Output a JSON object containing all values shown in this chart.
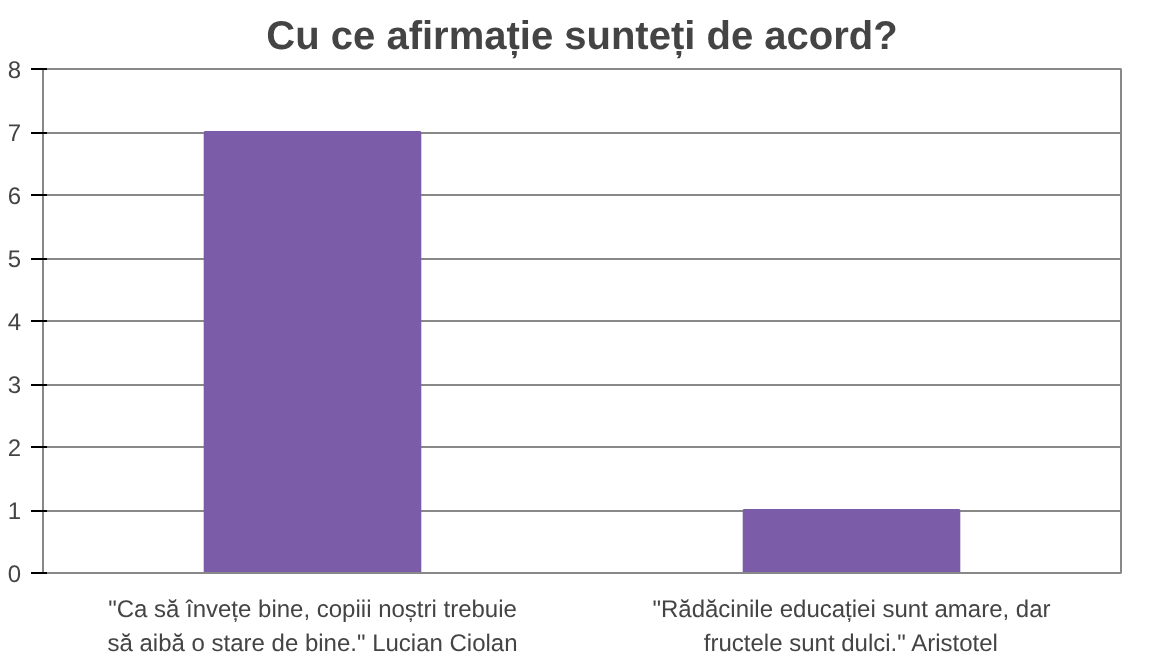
{
  "chart_data": {
    "type": "bar",
    "title": "Cu ce afirmație sunteți de acord?",
    "categories": [
      "\"Ca să învețe bine, copiii noștri trebuie să aibă o stare de bine.\" Lucian Ciolan",
      "\"Rădăcinile educației sunt amare, dar fructele sunt dulci.\" Aristotel"
    ],
    "values": [
      7,
      1
    ],
    "color": "#7b5ca8",
    "ylim": [
      0,
      8
    ],
    "yticks": [
      0,
      1,
      2,
      3,
      4,
      5,
      6,
      7,
      8
    ],
    "grid": "y"
  }
}
